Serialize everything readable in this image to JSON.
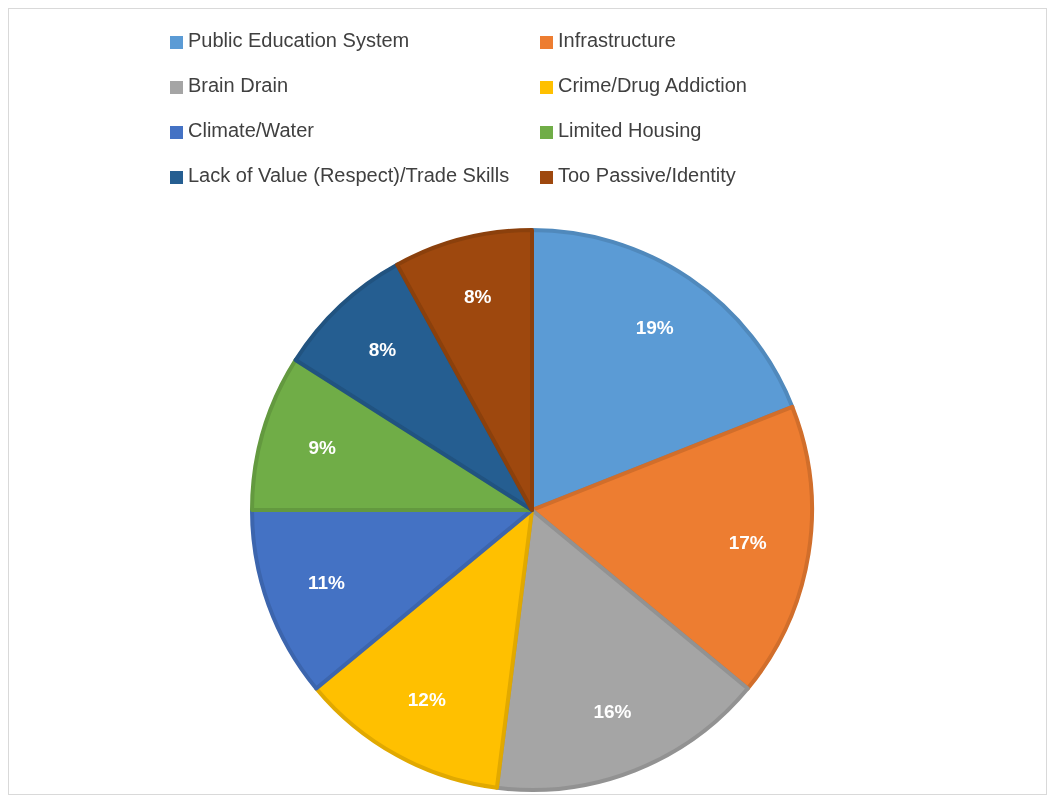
{
  "chart_data": {
    "type": "pie",
    "categories": [
      "Public Education System",
      "Infrastructure",
      "Brain Drain",
      "Crime/Drug Addiction",
      "Climate/Water",
      "Limited Housing",
      "Lack of Value (Respect)/Trade Skills",
      "Too Passive/Identity"
    ],
    "values": [
      19,
      17,
      16,
      12,
      11,
      9,
      8,
      8
    ],
    "colors": [
      "#5b9bd5",
      "#ed7d31",
      "#a5a5a5",
      "#ffc000",
      "#4472c4",
      "#70ad47",
      "#255e91",
      "#9e480e"
    ],
    "value_labels": [
      "19%",
      "17%",
      "16%",
      "12%",
      "11%",
      "9%",
      "8%",
      "8%"
    ],
    "legend": "top"
  }
}
